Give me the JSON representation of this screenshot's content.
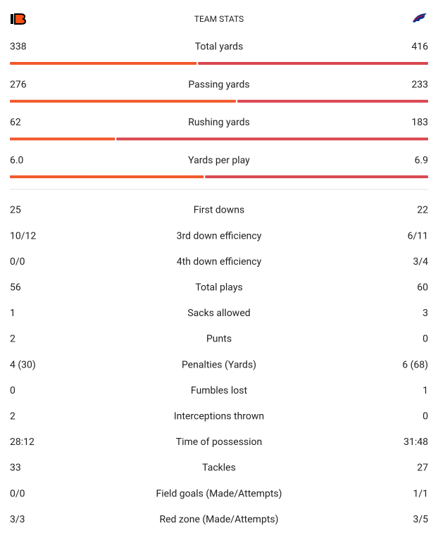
{
  "header": {
    "title": "TEAM STATS"
  },
  "bar_stats": [
    {
      "label": "Total yards",
      "home": 338,
      "away": 416
    },
    {
      "label": "Passing yards",
      "home": 276,
      "away": 233
    },
    {
      "label": "Rushing yards",
      "home": 62,
      "away": 183
    },
    {
      "label": "Yards per play",
      "home": {
        "value": 6,
        "label": "6.0"
      },
      "away": 6.9
    }
  ],
  "stats": [
    {
      "label": "First downs",
      "home": 25,
      "away": 22
    },
    {
      "label": "3rd down efficiency",
      "home": "10/12",
      "away": "6/11"
    },
    {
      "label": "4th down efficiency",
      "home": "0/0",
      "away": "3/4"
    },
    {
      "label": "Total plays",
      "home": 56,
      "away": 60
    },
    {
      "label": "Sacks allowed",
      "home": 1,
      "away": 3
    },
    {
      "label": "Punts",
      "home": 2,
      "away": 0
    },
    {
      "label": "Penalties (Yards)",
      "home": "4 (30)",
      "away": "6 (68)"
    },
    {
      "label": "Fumbles lost",
      "home": 0,
      "away": 1
    },
    {
      "label": "Interceptions thrown",
      "home": 2,
      "away": 0
    },
    {
      "label": "Time of possession",
      "home": "28:12",
      "away": "31:48"
    },
    {
      "label": "Tackles",
      "home": 33,
      "away": 27
    },
    {
      "label": "Field goals (Made/Attempts)",
      "home": "0/0",
      "away": "1/1"
    },
    {
      "label": "Red zone (Made/Attempts)",
      "home": "3/3",
      "away": "3/5"
    }
  ]
}
